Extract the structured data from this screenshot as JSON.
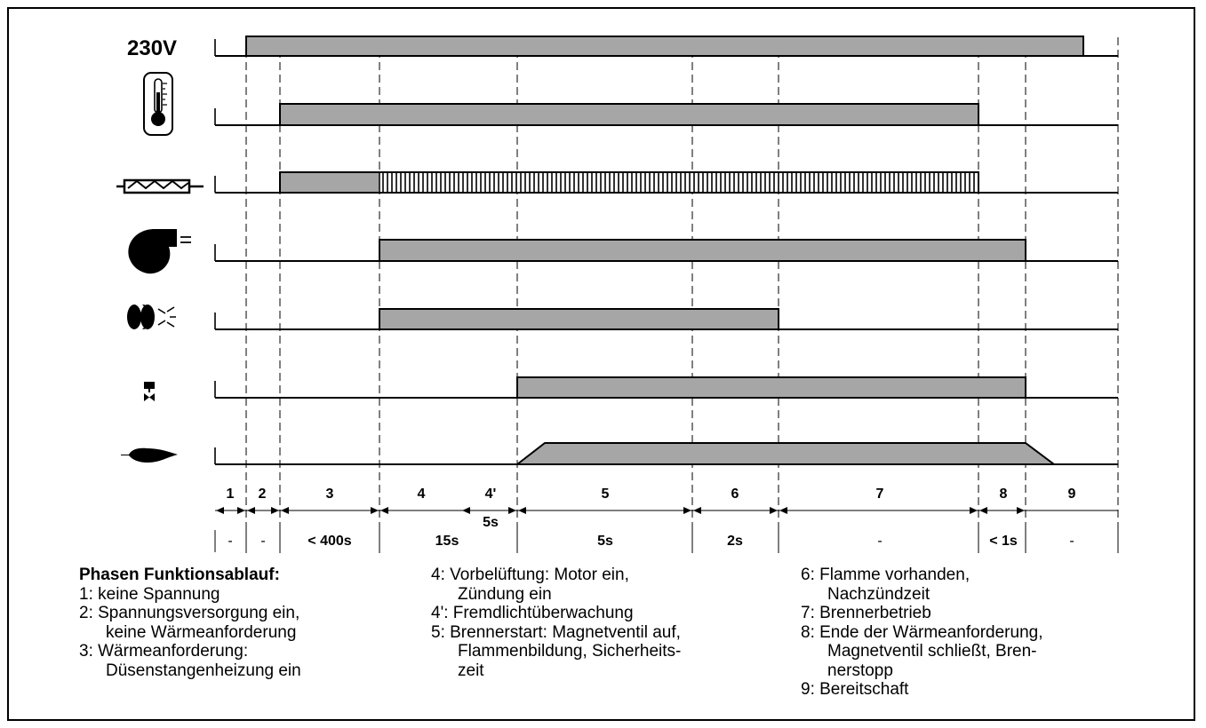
{
  "signals": [
    {
      "id": "voltage",
      "label": "230V",
      "icon": "voltage-label"
    },
    {
      "id": "thermostat",
      "icon": "thermometer-icon"
    },
    {
      "id": "nozzle_heater",
      "icon": "heating-element-icon"
    },
    {
      "id": "motor",
      "icon": "fan-motor-icon"
    },
    {
      "id": "ignition",
      "icon": "ignition-electrode-icon"
    },
    {
      "id": "solenoid_valve",
      "icon": "solenoid-valve-icon"
    },
    {
      "id": "flame",
      "icon": "flame-icon"
    }
  ],
  "phases": [
    {
      "label": "1",
      "duration": "-"
    },
    {
      "label": "2",
      "duration": "-"
    },
    {
      "label": "3",
      "duration": "< 400s"
    },
    {
      "label": "4",
      "duration": "15s"
    },
    {
      "label": "4'",
      "sub": "5s"
    },
    {
      "label": "5",
      "duration": "5s"
    },
    {
      "label": "6",
      "duration": "2s"
    },
    {
      "label": "7",
      "duration": "-"
    },
    {
      "label": "8",
      "duration": "< 1s"
    },
    {
      "label": "9",
      "duration": "-"
    }
  ],
  "legend": {
    "title": "Phasen Funktionsablauf:",
    "col1": [
      "1:  keine Spannung",
      "2: Spannungsversorgung ein,",
      "keine Wärmeanforderung",
      "3: Wärmeanforderung:",
      "Düsenstangenheizung ein"
    ],
    "col2": [
      "4: Vorbelüftung: Motor ein,",
      "Zündung ein",
      "4':  Fremdlichtüberwachung",
      "5:  Brennerstart: Magnetventil auf,",
      "Flammenbildung, Sicherheits-",
      "zeit"
    ],
    "col3": [
      "6:  Flamme vorhanden,",
      "Nachzündzeit",
      "7:  Brennerbetrieb",
      "8:  Ende der Wärmeanforderung,",
      "Magnetventil schließt, Bren-",
      "nerstopp",
      "9: Bereitschaft"
    ]
  },
  "colors": {
    "bar_fill": "#a6a6a6",
    "line": "#000000",
    "background": "#ffffff"
  }
}
